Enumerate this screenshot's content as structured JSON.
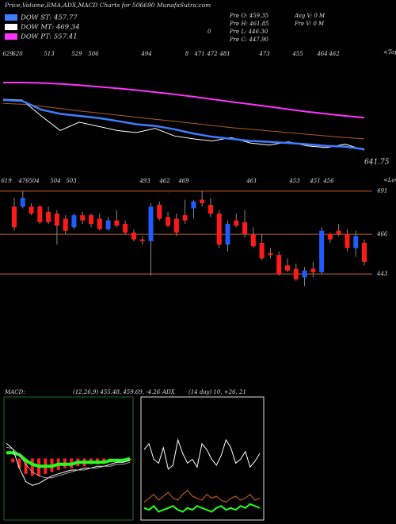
{
  "header": {
    "title": "Price,Volume,EMA,ADX,MACD Charts for 506690  MunafaSutra.com",
    "legend": [
      {
        "label": "DOW ST: 457.77",
        "color": "#3f7cff"
      },
      {
        "label": "DOW MT: 469.34",
        "color": "#ffffff"
      },
      {
        "label": "DOW PT: 557.41",
        "color": "#ff33ff"
      }
    ],
    "stats": [
      "Pre  O: 459.35",
      "Pre  H: 461.85",
      "Pre  L: 446.30",
      "Pre  C: 447.90",
      "Avg V: 0  M",
      "Pre  V: 0  M"
    ],
    "zero_mark": "0"
  },
  "chart_data": [
    {
      "type": "line",
      "label": "641.75",
      "tops_label": "<Tops",
      "tops": [
        "629",
        "620",
        "513",
        "529",
        "506",
        "494",
        "8",
        "471",
        "472",
        "481",
        "473",
        "455",
        "464",
        "462"
      ],
      "ylim": [
        400,
        720
      ],
      "series": [
        {
          "color": "#ff33ff",
          "values": [
            640,
            640,
            639,
            637,
            634,
            630,
            626,
            622,
            617,
            612,
            606,
            600,
            594,
            588,
            582,
            576,
            570,
            565,
            560,
            556
          ]
        },
        {
          "color": "#b05a28",
          "values": [
            590,
            588,
            583,
            578,
            572,
            567,
            562,
            557,
            552,
            547,
            542,
            537,
            532,
            528,
            524,
            520,
            516,
            512,
            508,
            505
          ]
        },
        {
          "color": "#ffffff",
          "values": [
            600,
            598,
            560,
            525,
            545,
            535,
            525,
            520,
            530,
            512,
            505,
            500,
            508,
            495,
            490,
            498,
            488,
            484,
            492,
            478
          ]
        },
        {
          "color": "#3f7cff",
          "values": [
            598,
            596,
            575,
            565,
            560,
            555,
            548,
            540,
            536,
            528,
            518,
            510,
            505,
            500,
            498,
            495,
            492,
            488,
            486,
            480
          ]
        }
      ]
    },
    {
      "type": "candlestick",
      "lows_label": "<Lows",
      "lows": [
        "619",
        "476",
        "504",
        "504",
        "503",
        "493",
        "462",
        "469",
        "461",
        "453",
        "451",
        "456"
      ],
      "ylim": [
        432,
        495
      ],
      "yticks": [
        491,
        466,
        443
      ],
      "grid": true,
      "grid_color": "#c86428",
      "up_color": "#1e5cff",
      "down_color": "#ff1a1a",
      "open": [
        482,
        482,
        482,
        482,
        479,
        478,
        475,
        470,
        477,
        477,
        475,
        469,
        474,
        472,
        467,
        463,
        462,
        483,
        476,
        475,
        477,
        481,
        486,
        483,
        478,
        460,
        474,
        473,
        466,
        461,
        455,
        454,
        448,
        446,
        441,
        446,
        444,
        466,
        468,
        466,
        458,
        461
      ],
      "high": [
        487,
        491,
        484,
        483,
        482,
        480,
        477,
        478,
        479,
        478,
        478,
        476,
        480,
        474,
        469,
        465,
        484,
        485,
        479,
        478,
        486,
        486,
        491,
        487,
        480,
        474,
        478,
        480,
        470,
        466,
        458,
        456,
        452,
        449,
        447,
        450,
        470,
        467,
        472,
        469,
        468,
        463
      ],
      "low": [
        468,
        481,
        477,
        472,
        472,
        460,
        466,
        469,
        472,
        470,
        468,
        468,
        470,
        466,
        462,
        460,
        442,
        474,
        470,
        465,
        472,
        475,
        482,
        476,
        458,
        456,
        470,
        464,
        458,
        451,
        452,
        442,
        444,
        439,
        436,
        441,
        443,
        461,
        465,
        456,
        453,
        448
      ],
      "close": [
        470,
        487,
        478,
        473,
        473,
        471,
        468,
        477,
        474,
        472,
        469,
        474,
        471,
        467,
        463,
        462,
        482,
        475,
        471,
        467,
        474,
        485,
        484,
        478,
        460,
        472,
        471,
        466,
        459,
        452,
        454,
        443,
        445,
        440,
        445,
        444,
        468,
        463,
        466,
        458,
        465,
        450
      ]
    },
    {
      "type": "macd",
      "title": "MACD:",
      "subtitle": "(12,26,9) 455.48, 459.69, -4.26",
      "ylim": [
        -30,
        30
      ],
      "hist_color": "#ff2020",
      "histogram": [
        0,
        -2,
        -5,
        -8,
        -9,
        -9,
        -8,
        -7,
        -6,
        -5,
        -5,
        -4,
        -4,
        -3,
        -3,
        -2,
        -2,
        -1,
        -1,
        -1
      ],
      "series": [
        {
          "color": "#20ff20",
          "values": [
            3,
            3,
            2,
            -1,
            -3,
            -4,
            -4,
            -4,
            -3,
            -3,
            -3,
            -2,
            -2,
            -2,
            -2,
            -2,
            -1,
            -1,
            -1,
            0
          ]
        },
        {
          "color": "#ffffff",
          "values": [
            8,
            5,
            -5,
            -12,
            -14,
            -13,
            -11,
            -9,
            -8,
            -7,
            -6,
            -6,
            -5,
            -5,
            -4,
            -4,
            -3,
            -2,
            -2,
            -1
          ]
        },
        {
          "color": "#aaaaaa",
          "values": [
            6,
            5,
            2,
            -3,
            -7,
            -9,
            -10,
            -10,
            -9,
            -8,
            -7,
            -6,
            -6,
            -5,
            -5,
            -4,
            -4,
            -3,
            -3,
            -2
          ]
        }
      ]
    },
    {
      "type": "adx",
      "title": "ADX",
      "subtitle": "(14 day) 10, +26, 21",
      "ylim": [
        0,
        60
      ],
      "series": [
        {
          "color": "#ffffff",
          "values": [
            35,
            38,
            30,
            28,
            36,
            25,
            27,
            40,
            33,
            28,
            30,
            26,
            38,
            35,
            30,
            27,
            32,
            40,
            36,
            28,
            30,
            34,
            26,
            29,
            33
          ]
        },
        {
          "color": "#d2691e",
          "values": [
            8,
            10,
            12,
            9,
            11,
            13,
            10,
            9,
            12,
            14,
            11,
            10,
            9,
            12,
            10,
            11,
            9,
            8,
            10,
            11,
            9,
            10,
            12,
            9,
            10
          ]
        },
        {
          "color": "#20ff20",
          "values": [
            5,
            4,
            6,
            3,
            4,
            5,
            6,
            4,
            3,
            5,
            4,
            6,
            5,
            4,
            3,
            5,
            6,
            4,
            5,
            4,
            6,
            5,
            7,
            6,
            5
          ]
        }
      ]
    }
  ]
}
